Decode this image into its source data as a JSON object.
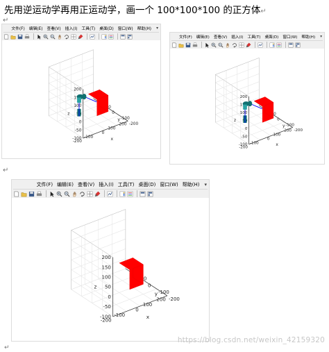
{
  "heading": "先用逆运动学再用正运动学，画一个 100*100*100 的正方体",
  "heading_mark": "↵",
  "paragraph_mark": "↵",
  "menu": {
    "items": [
      "文件(F)",
      "编辑(E)",
      "查看(V)",
      "插入(I)",
      "工具(T)",
      "桌面(D)",
      "窗口(W)",
      "帮助(H)"
    ],
    "overflow": "▾"
  },
  "toolbar_icons": [
    "new-figure-icon",
    "open-file-icon",
    "save-icon",
    "print-icon",
    "separator",
    "select-arrow-icon",
    "zoom-in-icon",
    "zoom-out-icon",
    "pan-icon",
    "rotate-3d-icon",
    "data-cursor-icon",
    "brush-icon",
    "separator",
    "link-plot-icon",
    "separator",
    "colorbar-icon",
    "legend-icon",
    "separator",
    "hide-plot-tools-icon",
    "show-plot-tools-icon"
  ],
  "colors": {
    "cube": "#ff0000",
    "robot_link": "#0000ff",
    "robot_joint": "#107070",
    "axes_line": "#262626",
    "grid": "#e6e6e6",
    "window_bg": "#f0f0f0"
  },
  "watermark": "https://blog.csdn.net/weixin_42159320",
  "figures": [
    {
      "name": "ik-figure-1",
      "axes": {
        "xlabel": "x",
        "ylabel": "y",
        "zlabel": "z",
        "xlim": [
          -200,
          200
        ],
        "ylim": [
          -200,
          200
        ],
        "zlim": [
          -100,
          200
        ],
        "x_ticks": [
          "200",
          "100",
          "0",
          "-100",
          "-200"
        ],
        "y_ticks": [
          "100",
          "0",
          "-100",
          "-200"
        ],
        "z_ticks": [
          "200",
          "150",
          "100",
          "50",
          "0",
          "-50",
          "-100"
        ],
        "grid": true
      },
      "robot_visible": true
    },
    {
      "name": "ik-figure-2",
      "axes": {
        "xlabel": "x",
        "ylabel": "y",
        "zlabel": "z",
        "xlim": [
          -200,
          200
        ],
        "ylim": [
          -200,
          200
        ],
        "zlim": [
          -100,
          200
        ],
        "x_ticks": [
          "200",
          "100",
          "0",
          "-100",
          "-200"
        ],
        "y_ticks": [
          "100",
          "0",
          "-100",
          "-200"
        ],
        "z_ticks": [
          "200",
          "150",
          "100",
          "50",
          "0",
          "-50",
          "-100"
        ],
        "grid": true
      },
      "robot_visible": true
    },
    {
      "name": "fk-figure-cube",
      "axes": {
        "xlabel": "x",
        "ylabel": "y",
        "zlabel": "z",
        "xlim": [
          -200,
          200
        ],
        "ylim": [
          -200,
          200
        ],
        "zlim": [
          -100,
          200
        ],
        "x_ticks": [
          "200",
          "100",
          "0",
          "-100",
          "-200"
        ],
        "y_ticks": [
          "100",
          "0",
          "-100",
          "-200"
        ],
        "z_ticks": [
          "200",
          "150",
          "100",
          "50",
          "0",
          "-50",
          "-100"
        ],
        "grid": true
      },
      "robot_visible": false
    }
  ]
}
